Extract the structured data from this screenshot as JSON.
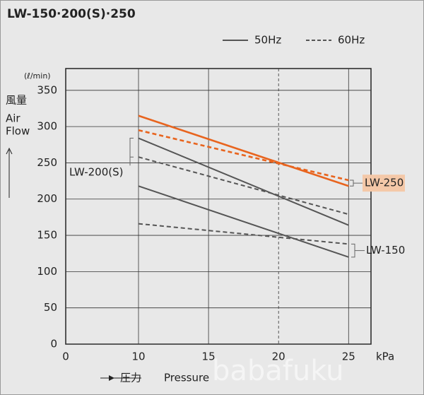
{
  "chart_data": {
    "type": "line",
    "title": "LW-150·200(S)·250",
    "y_unit": "(ℓ/min)",
    "y_label_jp": "風量",
    "y_label_en_1": "Air",
    "y_label_en_2": "Flow",
    "x_label_jp": "圧力",
    "x_label_en": "Pressure",
    "x_unit": "kPa",
    "x": [
      10,
      25
    ],
    "xlim": [
      0,
      26.6
    ],
    "xticks": [
      0,
      10,
      15,
      20,
      25
    ],
    "ylim": [
      0,
      380
    ],
    "yticks": [
      0,
      50,
      100,
      150,
      200,
      250,
      300,
      350
    ],
    "grid": true,
    "dashed_x": 20,
    "legend": [
      {
        "label": "50Hz",
        "style": "solid"
      },
      {
        "label": "60Hz",
        "style": "dashed"
      }
    ],
    "groups": [
      {
        "label": "LW-250",
        "color": "#e8641e",
        "lines": [
          {
            "style": "solid",
            "values": [
              315,
              218
            ]
          },
          {
            "style": "dashed",
            "values": [
              295,
              226
            ]
          }
        ]
      },
      {
        "label": "LW-200(S)",
        "color": "#555555",
        "lines": [
          {
            "style": "solid",
            "values": [
              284,
              164
            ]
          },
          {
            "style": "dashed",
            "values": [
              258,
              179
            ]
          }
        ]
      },
      {
        "label": "LW-150",
        "color": "#555555",
        "lines": [
          {
            "style": "solid",
            "values": [
              218,
              120
            ]
          },
          {
            "style": "dashed",
            "values": [
              166,
              138
            ]
          }
        ]
      }
    ],
    "watermark": "babafuku"
  }
}
